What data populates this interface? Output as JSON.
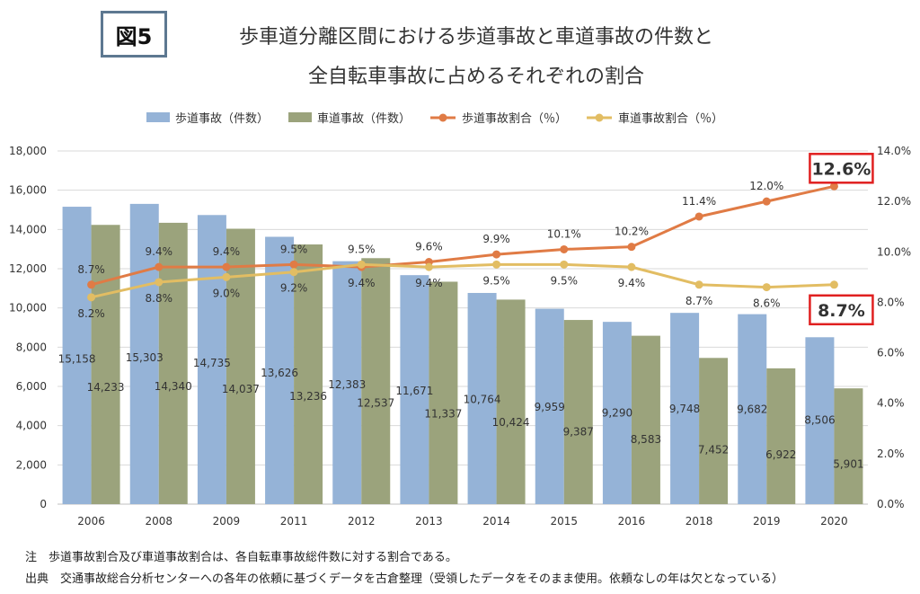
{
  "figure_label": "図5",
  "title_lines": [
    "歩車道分離区間における歩道事故と車道事故の件数と",
    "全自転車事故に占めるそれぞれの割合"
  ],
  "notes": [
    "注　歩道事故割合及び車道事故割合は、各自転車事故総件数に対する割合である。",
    "出典　交通事故総合分析センターへの各年の依頼に基づくデータを古倉整理（受領したデータをそのまま使用。依頼なしの年は欠となっている）"
  ],
  "colors": {
    "sidewalk_bar": "#95b3d7",
    "roadway_bar": "#9ba37c",
    "sidewalk_line": "#e07b45",
    "roadway_line": "#e2bd63",
    "highlight_box": "#e02020",
    "grid": "#d9d9d9"
  },
  "chart_data": {
    "type": "bar",
    "categories": [
      "2006",
      "2008",
      "2009",
      "2011",
      "2012",
      "2013",
      "2014",
      "2015",
      "2016",
      "2018",
      "2019",
      "2020"
    ],
    "ylim": [
      0,
      18000
    ],
    "y_ticks": [
      "0",
      "2,000",
      "4,000",
      "6,000",
      "8,000",
      "10,000",
      "12,000",
      "14,000",
      "16,000",
      "18,000"
    ],
    "y2lim": [
      0,
      14
    ],
    "y2_ticks": [
      "0.0%",
      "2.0%",
      "4.0%",
      "6.0%",
      "8.0%",
      "10.0%",
      "12.0%",
      "14.0%"
    ],
    "grid": true,
    "legend_position": "top",
    "series": [
      {
        "name": "歩道事故（件数）",
        "kind": "bar",
        "axis": "left",
        "values": [
          15158,
          15303,
          14735,
          13626,
          12383,
          11671,
          10764,
          9959,
          9290,
          9748,
          9682,
          8506
        ],
        "labels": [
          "15,158",
          "15,303",
          "14,735",
          "13,626",
          "12,383",
          "11,671",
          "10,764",
          "9,959",
          "9,290",
          "9,748",
          "9,682",
          "8,506"
        ]
      },
      {
        "name": "車道事故（件数）",
        "kind": "bar",
        "axis": "left",
        "values": [
          14233,
          14340,
          14037,
          13236,
          12537,
          11337,
          10424,
          9387,
          8583,
          7452,
          6922,
          5901
        ],
        "labels": [
          "14,233",
          "14,340",
          "14,037",
          "13,236",
          "12,537",
          "11,337",
          "10,424",
          "9,387",
          "8,583",
          "7,452",
          "6,922",
          "5,901"
        ]
      },
      {
        "name": "歩道事故割合（％）",
        "kind": "line",
        "axis": "right",
        "values": [
          8.7,
          9.4,
          9.4,
          9.5,
          9.4,
          9.6,
          9.9,
          10.1,
          10.2,
          11.4,
          12.0,
          12.6
        ],
        "labels": [
          "8.7%",
          "9.4%",
          "9.4%",
          "9.5%",
          "9.4%",
          "9.6%",
          "9.9%",
          "10.1%",
          "10.2%",
          "11.4%",
          "12.0%",
          "12.6%"
        ]
      },
      {
        "name": "車道事故割合（％）",
        "kind": "line",
        "axis": "right",
        "values": [
          8.2,
          8.8,
          9.0,
          9.2,
          9.5,
          9.4,
          9.5,
          9.5,
          9.4,
          8.7,
          8.6,
          8.7
        ],
        "labels": [
          "8.2%",
          "8.8%",
          "9.0%",
          "9.2%",
          "9.5%",
          "9.4%",
          "9.5%",
          "9.5%",
          "9.4%",
          "8.7%",
          "8.6%",
          "8.7%"
        ]
      }
    ]
  }
}
